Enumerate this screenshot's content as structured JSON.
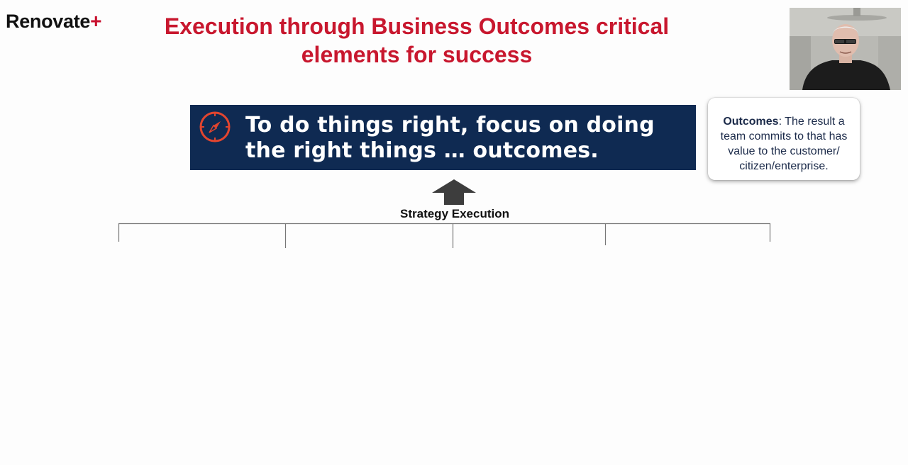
{
  "logo": {
    "name": "Renovate",
    "plus": "+"
  },
  "slide": {
    "title": "Execution through Business Outcomes critical elements for success",
    "banner": {
      "line1": "To do things right, focus on doing",
      "line2": "the right things … outcomes.",
      "icon": "compass-icon"
    },
    "callout": {
      "term": "Outcomes",
      "definition": ": The result a team commits to that has value to the customer/ citizen/enterprise."
    },
    "strategy_label": "Strategy Execution"
  },
  "colors": {
    "title_red": "#c8172e",
    "banner_navy": "#0f2a52",
    "accent_orange": "#e2452f"
  }
}
